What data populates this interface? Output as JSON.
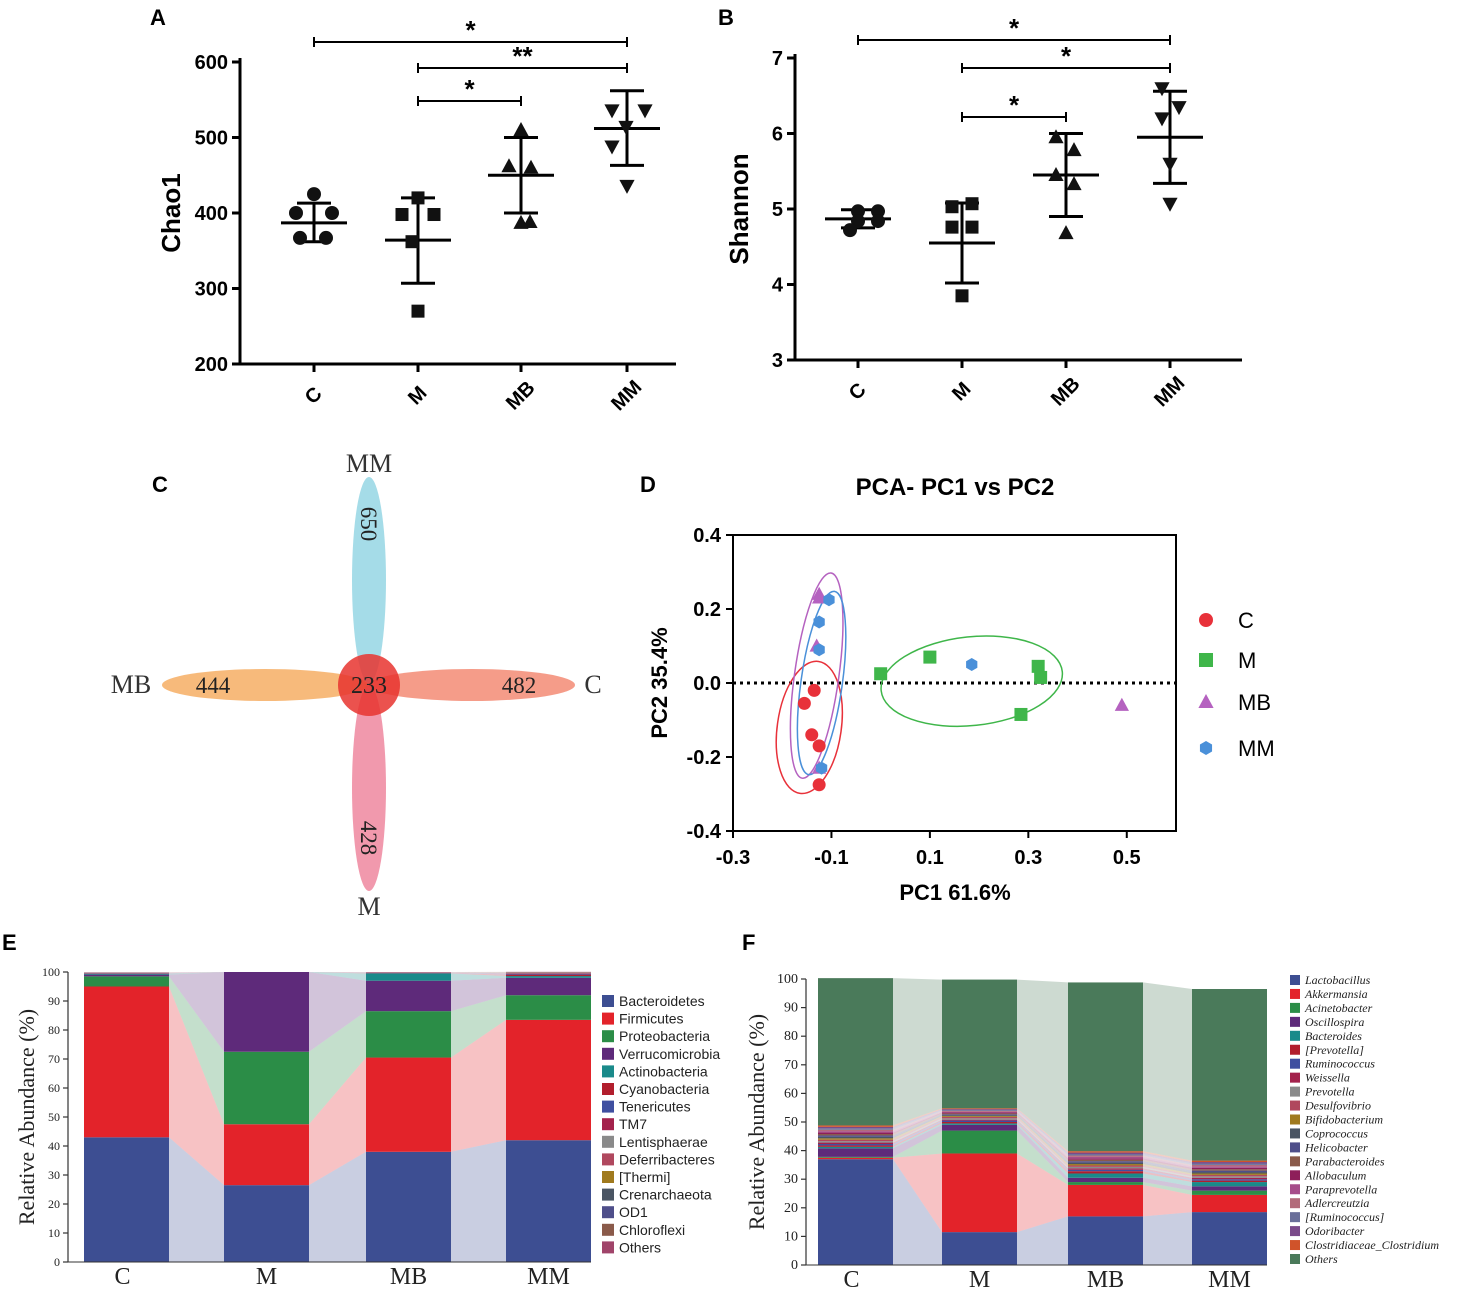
{
  "colors": {
    "C": "#e8313a",
    "M": "#3fb64a",
    "MB": "#b562c0",
    "MM": "#4a90d9",
    "venn_MM": "#8fd3e2",
    "venn_MB": "#f5a95a",
    "venn_C": "#f2836b",
    "venn_M": "#ee7f98",
    "venn_center": "#e8342f"
  },
  "chart_data": [
    {
      "panel": "A",
      "type": "scatter",
      "ylabel": "Chao1",
      "categories": [
        "C",
        "M",
        "MB",
        "MM"
      ],
      "ylim": [
        200,
        600
      ],
      "yticks": [
        "200",
        "300",
        "400",
        "500",
        "600"
      ],
      "markers": [
        "circle",
        "square",
        "triangle-up",
        "triangle-down"
      ],
      "points": [
        [
          [
            314,
            425
          ],
          [
            296,
            400
          ],
          [
            332,
            400
          ],
          [
            300,
            367
          ],
          [
            326,
            367
          ]
        ],
        [
          [
            418,
            420
          ],
          [
            402,
            398
          ],
          [
            434,
            398
          ],
          [
            412,
            362
          ],
          [
            418,
            270
          ]
        ],
        [
          [
            521,
            510
          ],
          [
            509,
            462
          ],
          [
            531,
            460
          ],
          [
            530,
            388
          ],
          [
            521,
            387
          ]
        ],
        [
          [
            612,
            536
          ],
          [
            645,
            536
          ],
          [
            626,
            514
          ],
          [
            612,
            488
          ],
          [
            627,
            436
          ]
        ]
      ],
      "mean": [
        387,
        364,
        450,
        512
      ],
      "sd_low": [
        362,
        307,
        400,
        463
      ],
      "sd_high": [
        413,
        420,
        500,
        562
      ],
      "significance": [
        {
          "from": "C",
          "to": "MM",
          "label": "*"
        },
        {
          "from": "M",
          "to": "MM",
          "label": "**"
        },
        {
          "from": "M",
          "to": "MB",
          "label": "*"
        }
      ]
    },
    {
      "panel": "B",
      "type": "scatter",
      "ylabel": "Shannon",
      "categories": [
        "C",
        "M",
        "MB",
        "MM"
      ],
      "ylim": [
        3,
        7
      ],
      "yticks": [
        "3",
        "4",
        "5",
        "6",
        "7"
      ],
      "markers": [
        "circle",
        "square",
        "triangle-up",
        "triangle-down"
      ],
      "points": [
        [
          [
            858,
            4.97
          ],
          [
            878,
            4.97
          ],
          [
            858,
            4.84
          ],
          [
            878,
            4.84
          ],
          [
            850,
            4.72
          ]
        ],
        [
          [
            952,
            5.03
          ],
          [
            972,
            5.07
          ],
          [
            952,
            4.76
          ],
          [
            972,
            4.76
          ],
          [
            962,
            3.85
          ]
        ],
        [
          [
            1056,
            5.95
          ],
          [
            1074,
            5.78
          ],
          [
            1056,
            5.45
          ],
          [
            1074,
            5.33
          ],
          [
            1066,
            4.68
          ]
        ],
        [
          [
            1162,
            6.6
          ],
          [
            1179,
            6.35
          ],
          [
            1162,
            6.2
          ],
          [
            1170,
            5.6
          ],
          [
            1170,
            5.07
          ]
        ]
      ],
      "mean": [
        4.87,
        4.55,
        5.45,
        5.95
      ],
      "sd_low": [
        4.75,
        4.02,
        4.9,
        5.34
      ],
      "sd_high": [
        4.99,
        5.08,
        6.0,
        6.56
      ],
      "significance": [
        {
          "from": "C",
          "to": "MM",
          "label": "*"
        },
        {
          "from": "M",
          "to": "MM",
          "label": "*"
        },
        {
          "from": "M",
          "to": "MB",
          "label": "*"
        }
      ]
    },
    {
      "panel": "C",
      "type": "venn",
      "sets": [
        "MM",
        "MB",
        "C",
        "M"
      ],
      "unique": {
        "MM": 650,
        "MB": 444,
        "C": 482,
        "M": 428
      },
      "shared": 233
    },
    {
      "panel": "D",
      "type": "scatter",
      "title": "PCA- PC1 vs PC2",
      "xlabel": "PC1 61.6%",
      "ylabel": "PC2 35.4%",
      "xlim": [
        -0.3,
        0.6
      ],
      "ylim": [
        -0.4,
        0.4
      ],
      "xticks": [
        "-0.3",
        "-0.1",
        "0.1",
        "0.3",
        "0.5"
      ],
      "yticks": [
        "-0.4",
        "-0.2",
        "0.0",
        "0.2",
        "0.4"
      ],
      "legend": [
        "C",
        "M",
        "MB",
        "MM"
      ],
      "series": [
        {
          "name": "C",
          "x": [
            -0.135,
            -0.155,
            -0.14,
            -0.125,
            -0.125
          ],
          "y": [
            -0.02,
            -0.055,
            -0.14,
            -0.17,
            -0.275
          ]
        },
        {
          "name": "M",
          "x": [
            0.0,
            0.1,
            0.32,
            0.325,
            0.285
          ],
          "y": [
            0.025,
            0.07,
            0.045,
            0.015,
            -0.085
          ]
        },
        {
          "name": "MB",
          "x": [
            -0.125,
            -0.13,
            -0.125,
            -0.125,
            0.49
          ],
          "y": [
            0.24,
            0.1,
            -0.23,
            0.23,
            -0.06
          ]
        },
        {
          "name": "MM",
          "x": [
            -0.105,
            -0.125,
            -0.125,
            0.185,
            -0.12
          ],
          "y": [
            0.225,
            0.165,
            0.09,
            0.05,
            -0.23
          ]
        }
      ]
    },
    {
      "panel": "E",
      "type": "bar",
      "stacked": true,
      "ylabel": "Relative Abundance (%)",
      "categories": [
        "C",
        "M",
        "MB",
        "MM"
      ],
      "ylim": [
        0,
        100
      ],
      "yticks": [
        "0",
        "10",
        "20",
        "30",
        "40",
        "50",
        "60",
        "70",
        "80",
        "90",
        "100"
      ],
      "series": [
        {
          "name": "Bacteroidetes",
          "color": "#3d4e92",
          "values": [
            43,
            26.5,
            38,
            42
          ]
        },
        {
          "name": "Firmicutes",
          "color": "#e3232a",
          "values": [
            52,
            21,
            32.5,
            41.5
          ]
        },
        {
          "name": "Proteobacteria",
          "color": "#2b8d47",
          "values": [
            3.5,
            25,
            16,
            8.5
          ]
        },
        {
          "name": "Verrucomicrobia",
          "color": "#5e2a7a",
          "values": [
            0.6,
            27.5,
            10.5,
            6
          ]
        },
        {
          "name": "Actinobacteria",
          "color": "#1a8a8a",
          "values": [
            0.3,
            0,
            2.5,
            0.6
          ]
        },
        {
          "name": "Cyanobacteria",
          "color": "#b21e2d",
          "values": [
            0.1,
            0,
            0.1,
            0.5
          ]
        },
        {
          "name": "Tenericutes",
          "color": "#3f4fa0",
          "values": [
            0.1,
            0,
            0.1,
            0.3
          ]
        },
        {
          "name": "TM7",
          "color": "#a3224c",
          "values": [
            0.1,
            0,
            0.1,
            0.2
          ]
        },
        {
          "name": "Lentisphaerae",
          "color": "#8a8a8a",
          "values": [
            0.1,
            0,
            0.1,
            0.1
          ]
        },
        {
          "name": "Deferribacteres",
          "color": "#b0485e",
          "values": [
            0.05,
            0,
            0.05,
            0.1
          ]
        },
        {
          "name": "[Thermi]",
          "color": "#a07a1e",
          "values": [
            0,
            0,
            0,
            0.05
          ]
        },
        {
          "name": "Crenarchaeota",
          "color": "#4a5563",
          "values": [
            0,
            0,
            0,
            0.05
          ]
        },
        {
          "name": "OD1",
          "color": "#4f4f8a",
          "values": [
            0,
            0,
            0,
            0.05
          ]
        },
        {
          "name": "Chloroflexi",
          "color": "#8a5a4a",
          "values": [
            0,
            0,
            0,
            0.05
          ]
        },
        {
          "name": "Others",
          "color": "#a0446a",
          "values": [
            0.05,
            0,
            0.05,
            0.05
          ]
        }
      ]
    },
    {
      "panel": "F",
      "type": "bar",
      "stacked": true,
      "ylabel": "Relative Abundance (%)",
      "categories": [
        "C",
        "M",
        "MB",
        "MM"
      ],
      "ylim": [
        0,
        100
      ],
      "yticks": [
        "0",
        "10",
        "20",
        "30",
        "40",
        "50",
        "60",
        "70",
        "80",
        "90",
        "100"
      ],
      "series": [
        {
          "name": "Lactobacillus",
          "color": "#3d4e92",
          "values": [
            37,
            11.5,
            17,
            18.5
          ]
        },
        {
          "name": "Akkermansia",
          "color": "#e3232a",
          "values": [
            0.5,
            27.5,
            11,
            6
          ]
        },
        {
          "name": "Acinetobacter",
          "color": "#2b8d47",
          "values": [
            0.3,
            8,
            1,
            1.5
          ]
        },
        {
          "name": "Oscillospira",
          "color": "#5e2a7a",
          "values": [
            3,
            2,
            1.5,
            1.5
          ]
        },
        {
          "name": "Bacteroides",
          "color": "#1a8a8a",
          "values": [
            0.5,
            0.5,
            1.5,
            1.5
          ]
        },
        {
          "name": "[Prevotella]",
          "color": "#b21e2d",
          "values": [
            0.5,
            0.5,
            0.8,
            0.5
          ]
        },
        {
          "name": "Ruminococcus",
          "color": "#3f4fa0",
          "values": [
            0.5,
            0.5,
            0.5,
            0.5
          ]
        },
        {
          "name": "Weissella",
          "color": "#a3224c",
          "values": [
            0.5,
            0.3,
            0.5,
            0.5
          ]
        },
        {
          "name": "Prevotella",
          "color": "#8a8a8a",
          "values": [
            0.5,
            0.5,
            0.5,
            0.5
          ]
        },
        {
          "name": "Desulfovibrio",
          "color": "#b0485e",
          "values": [
            0.5,
            0.5,
            0.5,
            0.5
          ]
        },
        {
          "name": "Bifidobacterium",
          "color": "#a07a1e",
          "values": [
            0.5,
            0.3,
            0.5,
            0.5
          ]
        },
        {
          "name": "Coprococcus",
          "color": "#4a5563",
          "values": [
            0.5,
            0.3,
            0.5,
            0.5
          ]
        },
        {
          "name": "Helicobacter",
          "color": "#4f4f8a",
          "values": [
            0.5,
            0.3,
            0.5,
            0.5
          ]
        },
        {
          "name": "Parabacteroides",
          "color": "#8a5a4a",
          "values": [
            0.5,
            0.3,
            0.5,
            0.5
          ]
        },
        {
          "name": "Allobaculum",
          "color": "#8e1f5a",
          "values": [
            0.5,
            0.3,
            0.5,
            0.5
          ]
        },
        {
          "name": "Paraprevotella",
          "color": "#a64d8a",
          "values": [
            0.5,
            0.3,
            0.5,
            0.5
          ]
        },
        {
          "name": "Adlercreutzia",
          "color": "#b26b7a",
          "values": [
            0.5,
            0.3,
            0.5,
            0.5
          ]
        },
        {
          "name": "[Ruminococcus]",
          "color": "#6a6f9a",
          "values": [
            0.5,
            0.3,
            0.5,
            0.5
          ]
        },
        {
          "name": "Odoribacter",
          "color": "#7a4a8a",
          "values": [
            0.5,
            0.3,
            0.5,
            0.5
          ]
        },
        {
          "name": "Clostridiaceae_Clostridium",
          "color": "#d0532a",
          "values": [
            0.5,
            0.3,
            0.5,
            0.5
          ]
        },
        {
          "name": "Others",
          "color": "#4a7a5a",
          "values": [
            51.5,
            45,
            59,
            60
          ]
        }
      ]
    }
  ],
  "panel_labels": [
    "A",
    "B",
    "C",
    "D",
    "E",
    "F"
  ]
}
